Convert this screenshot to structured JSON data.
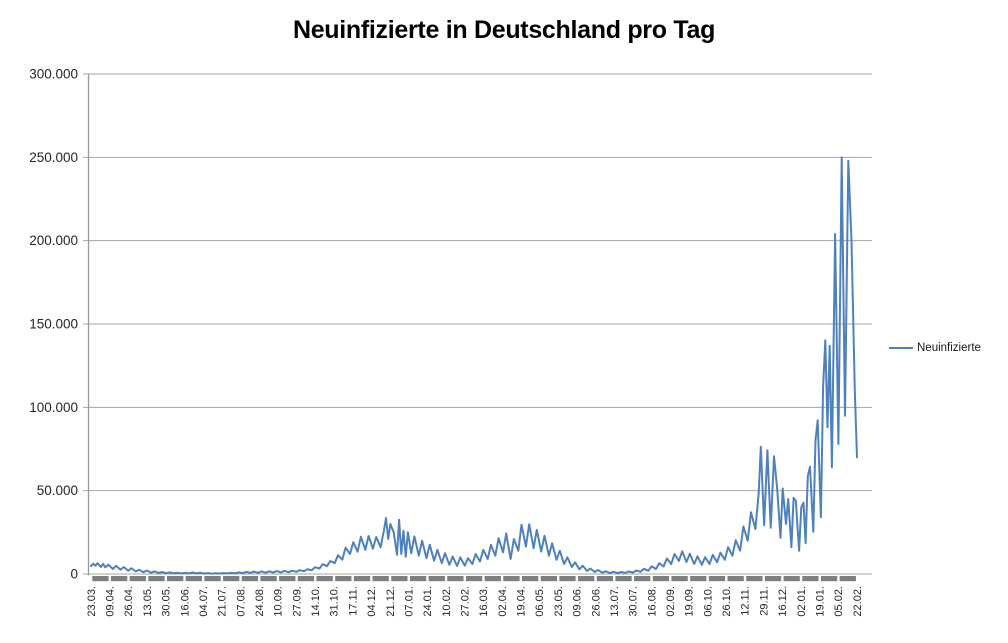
{
  "chart_data": {
    "type": "line",
    "title": "Neuinfizierte in Deutschland pro Tag",
    "legend": {
      "label": "Neuinfizierte",
      "position": "right"
    },
    "grid": "horizontal",
    "ylim": [
      0,
      300000
    ],
    "y_tick_step": 50000,
    "y_tick_labels": [
      "0",
      "50.000",
      "100.000",
      "150.000",
      "200.000",
      "250.000",
      "300.000"
    ],
    "x_max_day": 701,
    "x_tick_labels": [
      "23.03.",
      "09.04.",
      "26.04.",
      "13.05.",
      "30.05.",
      "16.06.",
      "04.07.",
      "21.07.",
      "07.08.",
      "24.08.",
      "10.09.",
      "27.09.",
      "14.10.",
      "31.10.",
      "17.11.",
      "04.12.",
      "21.12.",
      "07.01.",
      "24.01.",
      "10.02.",
      "27.02.",
      "16.03.",
      "02.04.",
      "19.04.",
      "06.05.",
      "23.05.",
      "09.06.",
      "26.06.",
      "13.07.",
      "30.07.",
      "16.08.",
      "02.09.",
      "19.09.",
      "06.10.",
      "26.10.",
      "12.11.",
      "29.11.",
      "16.12.",
      "02.01.",
      "19.01.",
      "05.02.",
      "22.02."
    ],
    "colors": {
      "series": "#4F81BD",
      "gridline": "#A6A6A6",
      "axis": "#9A9A9A",
      "tick_band": "#7F7F7F",
      "text": "#262626"
    },
    "series": [
      {
        "name": "Neuinfizierte",
        "color": "#4F81BD",
        "points": [
          [
            0,
            4800
          ],
          [
            2,
            6200
          ],
          [
            4,
            5000
          ],
          [
            6,
            6500
          ],
          [
            9,
            4200
          ],
          [
            11,
            6100
          ],
          [
            13,
            4000
          ],
          [
            16,
            5600
          ],
          [
            20,
            3000
          ],
          [
            23,
            4900
          ],
          [
            27,
            2600
          ],
          [
            30,
            4200
          ],
          [
            34,
            2000
          ],
          [
            37,
            3400
          ],
          [
            41,
            1500
          ],
          [
            44,
            2600
          ],
          [
            48,
            1100
          ],
          [
            51,
            2100
          ],
          [
            55,
            800
          ],
          [
            58,
            1600
          ],
          [
            62,
            600
          ],
          [
            65,
            1200
          ],
          [
            69,
            500
          ],
          [
            72,
            1000
          ],
          [
            76,
            350
          ],
          [
            79,
            800
          ],
          [
            83,
            300
          ],
          [
            86,
            700
          ],
          [
            90,
            350
          ],
          [
            93,
            900
          ],
          [
            97,
            400
          ],
          [
            100,
            700
          ],
          [
            104,
            300
          ],
          [
            107,
            550
          ],
          [
            111,
            250
          ],
          [
            114,
            500
          ],
          [
            118,
            300
          ],
          [
            121,
            550
          ],
          [
            125,
            350
          ],
          [
            128,
            650
          ],
          [
            132,
            450
          ],
          [
            135,
            1000
          ],
          [
            139,
            550
          ],
          [
            142,
            1250
          ],
          [
            146,
            650
          ],
          [
            149,
            1450
          ],
          [
            153,
            750
          ],
          [
            156,
            1550
          ],
          [
            160,
            800
          ],
          [
            163,
            1650
          ],
          [
            167,
            900
          ],
          [
            170,
            1750
          ],
          [
            174,
            950
          ],
          [
            177,
            1850
          ],
          [
            181,
            1100
          ],
          [
            184,
            2000
          ],
          [
            188,
            1300
          ],
          [
            191,
            2300
          ],
          [
            195,
            1700
          ],
          [
            198,
            2900
          ],
          [
            202,
            2300
          ],
          [
            205,
            4100
          ],
          [
            209,
            3300
          ],
          [
            212,
            5900
          ],
          [
            216,
            4700
          ],
          [
            219,
            7800
          ],
          [
            223,
            6500
          ],
          [
            226,
            11300
          ],
          [
            230,
            8600
          ],
          [
            233,
            15800
          ],
          [
            237,
            12000
          ],
          [
            240,
            19100
          ],
          [
            244,
            13400
          ],
          [
            247,
            22300
          ],
          [
            251,
            14500
          ],
          [
            254,
            22800
          ],
          [
            258,
            15200
          ],
          [
            261,
            22200
          ],
          [
            265,
            16100
          ],
          [
            268,
            26000
          ],
          [
            270,
            33600
          ],
          [
            272,
            21000
          ],
          [
            274,
            30000
          ],
          [
            277,
            25000
          ],
          [
            280,
            11500
          ],
          [
            282,
            32500
          ],
          [
            284,
            12000
          ],
          [
            286,
            26000
          ],
          [
            288,
            10300
          ],
          [
            290,
            25000
          ],
          [
            293,
            12500
          ],
          [
            296,
            22500
          ],
          [
            300,
            11000
          ],
          [
            303,
            20000
          ],
          [
            307,
            9500
          ],
          [
            310,
            17500
          ],
          [
            314,
            8000
          ],
          [
            317,
            14500
          ],
          [
            321,
            6500
          ],
          [
            324,
            12500
          ],
          [
            328,
            5500
          ],
          [
            331,
            10500
          ],
          [
            335,
            4800
          ],
          [
            338,
            10000
          ],
          [
            342,
            5000
          ],
          [
            345,
            9500
          ],
          [
            349,
            6000
          ],
          [
            352,
            12000
          ],
          [
            356,
            7500
          ],
          [
            359,
            14500
          ],
          [
            363,
            9000
          ],
          [
            366,
            17500
          ],
          [
            370,
            11000
          ],
          [
            373,
            21500
          ],
          [
            377,
            13000
          ],
          [
            380,
            24300
          ],
          [
            384,
            9000
          ],
          [
            387,
            21000
          ],
          [
            391,
            14000
          ],
          [
            394,
            29500
          ],
          [
            398,
            16500
          ],
          [
            401,
            29800
          ],
          [
            405,
            15500
          ],
          [
            408,
            26500
          ],
          [
            412,
            13500
          ],
          [
            415,
            23000
          ],
          [
            419,
            11000
          ],
          [
            422,
            18500
          ],
          [
            426,
            8500
          ],
          [
            429,
            14000
          ],
          [
            433,
            6000
          ],
          [
            436,
            10000
          ],
          [
            440,
            4200
          ],
          [
            443,
            7000
          ],
          [
            447,
            2800
          ],
          [
            450,
            5000
          ],
          [
            454,
            1800
          ],
          [
            457,
            3300
          ],
          [
            461,
            1200
          ],
          [
            464,
            2400
          ],
          [
            468,
            800
          ],
          [
            471,
            1600
          ],
          [
            475,
            600
          ],
          [
            478,
            1300
          ],
          [
            482,
            550
          ],
          [
            485,
            1200
          ],
          [
            489,
            700
          ],
          [
            492,
            1500
          ],
          [
            496,
            900
          ],
          [
            499,
            2100
          ],
          [
            503,
            1300
          ],
          [
            506,
            3100
          ],
          [
            510,
            2000
          ],
          [
            513,
            4600
          ],
          [
            517,
            3000
          ],
          [
            520,
            6500
          ],
          [
            524,
            4500
          ],
          [
            527,
            9300
          ],
          [
            531,
            6000
          ],
          [
            534,
            12000
          ],
          [
            538,
            7800
          ],
          [
            541,
            13600
          ],
          [
            545,
            7200
          ],
          [
            548,
            12200
          ],
          [
            552,
            6000
          ],
          [
            555,
            10600
          ],
          [
            559,
            5500
          ],
          [
            562,
            10100
          ],
          [
            566,
            6000
          ],
          [
            569,
            11500
          ],
          [
            573,
            7000
          ],
          [
            576,
            12800
          ],
          [
            580,
            8500
          ],
          [
            583,
            16100
          ],
          [
            587,
            11000
          ],
          [
            590,
            20300
          ],
          [
            594,
            14000
          ],
          [
            597,
            28500
          ],
          [
            601,
            20000
          ],
          [
            604,
            37100
          ],
          [
            608,
            27000
          ],
          [
            611,
            48600
          ],
          [
            613,
            76400
          ],
          [
            616,
            29300
          ],
          [
            619,
            74300
          ],
          [
            622,
            27800
          ],
          [
            625,
            70600
          ],
          [
            628,
            51000
          ],
          [
            631,
            21700
          ],
          [
            633,
            51300
          ],
          [
            636,
            30000
          ],
          [
            638,
            45000
          ],
          [
            641,
            16100
          ],
          [
            643,
            45700
          ],
          [
            645,
            44000
          ],
          [
            648,
            13900
          ],
          [
            650,
            40000
          ],
          [
            652,
            42800
          ],
          [
            654,
            18500
          ],
          [
            656,
            58900
          ],
          [
            658,
            64300
          ],
          [
            661,
            25300
          ],
          [
            663,
            80400
          ],
          [
            665,
            92200
          ],
          [
            668,
            34100
          ],
          [
            670,
            112300
          ],
          [
            672,
            140200
          ],
          [
            674,
            88000
          ],
          [
            676,
            137000
          ],
          [
            678,
            64000
          ],
          [
            681,
            204000
          ],
          [
            684,
            78000
          ],
          [
            687,
            250000
          ],
          [
            690,
            95000
          ],
          [
            693,
            248000
          ],
          [
            696,
            200000
          ],
          [
            699,
            110000
          ],
          [
            701,
            70000
          ]
        ]
      }
    ]
  }
}
